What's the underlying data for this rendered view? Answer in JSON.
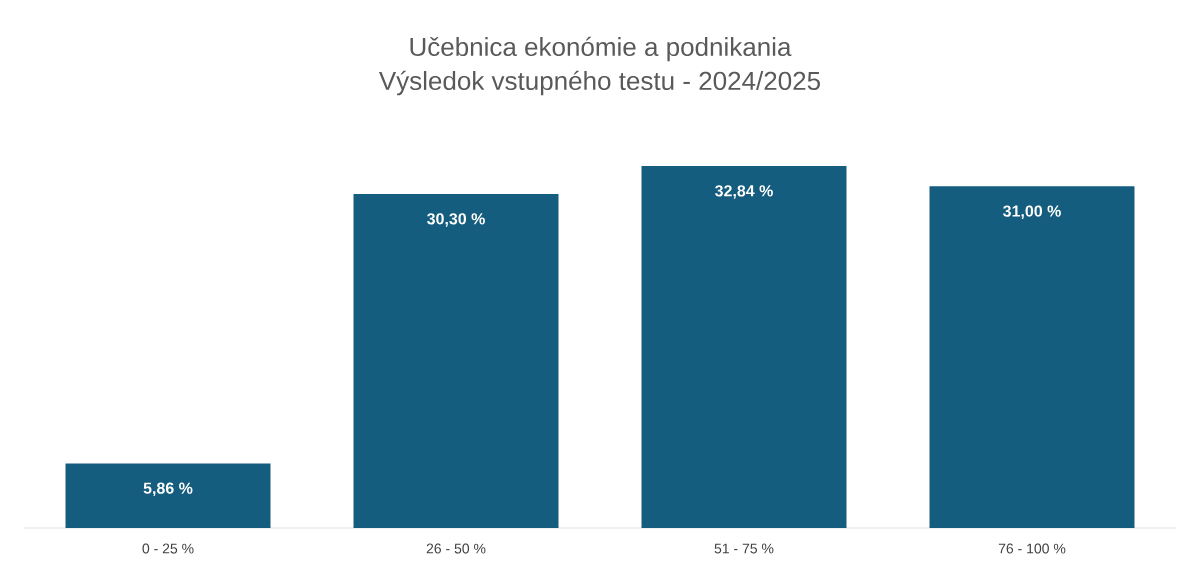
{
  "chart_data": {
    "type": "bar",
    "title": "Učebnica ekonómie a podnikania\nVýsledok vstupného testu - 2024/2025",
    "categories": [
      "0 - 25 %",
      "26 - 50 %",
      "51 - 75 %",
      "76 - 100 %"
    ],
    "values": [
      5.86,
      30.3,
      32.84,
      31.0
    ],
    "value_labels": [
      "5,86 %",
      "30,30 %",
      "32,84 %",
      "31,00 %"
    ],
    "color": "#155d7e"
  }
}
